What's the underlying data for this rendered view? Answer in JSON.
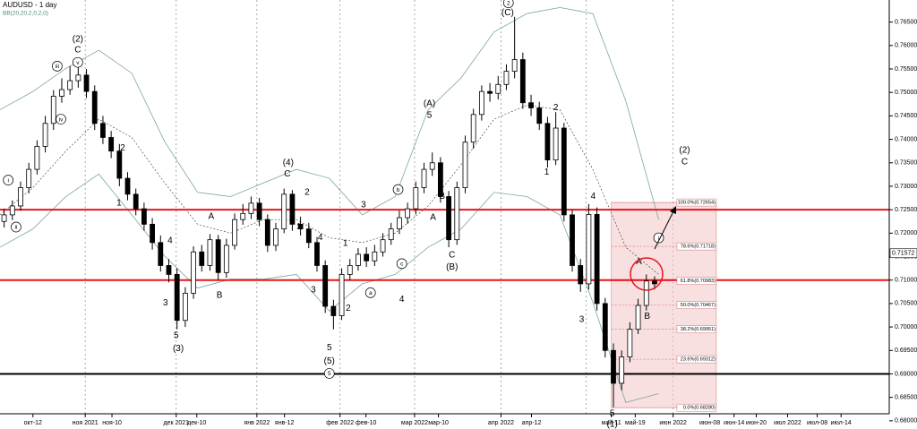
{
  "chart_data": {
    "type": "candlestick",
    "title": "AUDUSD - 1 day",
    "subtitle": "BB(20,20,2,0,2,0)",
    "x": [
      1,
      3,
      5,
      7,
      9,
      11,
      13,
      15,
      17,
      19,
      21,
      23,
      25,
      27,
      29,
      31,
      33,
      35,
      37,
      39,
      41,
      43,
      45,
      47,
      49,
      51,
      53,
      55,
      57,
      59,
      61,
      63,
      65,
      67,
      69,
      71,
      73,
      75,
      77,
      79,
      81,
      83,
      85,
      87,
      89,
      91,
      93,
      95,
      97,
      99,
      101,
      103,
      105,
      107,
      109,
      111,
      113,
      115,
      117,
      119,
      121,
      123,
      125,
      127,
      129,
      131,
      133,
      135,
      137,
      139,
      141,
      143,
      145,
      147,
      149,
      151,
      153,
      155,
      157,
      159
    ],
    "open": [
      0.7225,
      0.7239,
      0.7258,
      0.7297,
      0.7336,
      0.7385,
      0.7434,
      0.7492,
      0.7506,
      0.7525,
      0.7537,
      0.7502,
      0.7434,
      0.7404,
      0.7375,
      0.7317,
      0.7283,
      0.7252,
      0.7219,
      0.718,
      0.7131,
      0.7112,
      0.7014,
      0.7072,
      0.716,
      0.7131,
      0.7186,
      0.7116,
      0.7174,
      0.7229,
      0.7242,
      0.7264,
      0.7229,
      0.7174,
      0.7209,
      0.7283,
      0.7219,
      0.7209,
      0.718,
      0.7131,
      0.7044,
      0.7024,
      0.7112,
      0.7131,
      0.7155,
      0.7141,
      0.716,
      0.7186,
      0.7209,
      0.7233,
      0.7252,
      0.7297,
      0.7336,
      0.735,
      0.7278,
      0.7186,
      0.7297,
      0.7394,
      0.7453,
      0.7502,
      0.7498,
      0.7517,
      0.7545,
      0.757,
      0.7478,
      0.7467,
      0.7434,
      0.7356,
      0.7424,
      0.7239,
      0.7131,
      0.7092,
      0.724,
      0.705,
      0.695,
      0.688,
      0.6936,
      0.6995,
      0.7046,
      0.7098
    ],
    "high": [
      0.7252,
      0.727,
      0.731,
      0.735,
      0.7398,
      0.745,
      0.7505,
      0.753,
      0.7556,
      0.7555,
      0.755,
      0.7515,
      0.745,
      0.7418,
      0.739,
      0.733,
      0.7295,
      0.7265,
      0.7232,
      0.7195,
      0.7145,
      0.7125,
      0.7085,
      0.7172,
      0.7175,
      0.7198,
      0.7196,
      0.7188,
      0.7242,
      0.7262,
      0.7278,
      0.7275,
      0.724,
      0.7222,
      0.7295,
      0.7292,
      0.7235,
      0.7222,
      0.7192,
      0.7142,
      0.7058,
      0.7125,
      0.7145,
      0.7168,
      0.717,
      0.7175,
      0.72,
      0.7222,
      0.7248,
      0.7265,
      0.731,
      0.735,
      0.7372,
      0.7362,
      0.729,
      0.731,
      0.7408,
      0.7465,
      0.7515,
      0.752,
      0.7535,
      0.756,
      0.7661,
      0.7585,
      0.7495,
      0.748,
      0.7448,
      0.7458,
      0.7435,
      0.725,
      0.7145,
      0.7262,
      0.7255,
      0.7062,
      0.6965,
      0.695,
      0.701,
      0.706,
      0.7112,
      0.7108
    ],
    "low": [
      0.7212,
      0.7228,
      0.7248,
      0.7285,
      0.7325,
      0.7372,
      0.742,
      0.7478,
      0.7495,
      0.751,
      0.7488,
      0.742,
      0.739,
      0.736,
      0.73,
      0.727,
      0.7238,
      0.7205,
      0.7165,
      0.7118,
      0.7095,
      0.6995,
      0.7,
      0.706,
      0.7118,
      0.712,
      0.71,
      0.7105,
      0.7165,
      0.7218,
      0.723,
      0.7215,
      0.716,
      0.7162,
      0.72,
      0.7205,
      0.7195,
      0.7168,
      0.7118,
      0.703,
      0.6995,
      0.7015,
      0.71,
      0.712,
      0.7128,
      0.713,
      0.715,
      0.7175,
      0.7198,
      0.722,
      0.724,
      0.7285,
      0.7322,
      0.7265,
      0.717,
      0.7175,
      0.7285,
      0.738,
      0.744,
      0.748,
      0.7485,
      0.7505,
      0.753,
      0.7465,
      0.745,
      0.742,
      0.734,
      0.7345,
      0.7225,
      0.7118,
      0.7075,
      0.708,
      0.7035,
      0.6935,
      0.6829,
      0.6865,
      0.6925,
      0.6985,
      0.7035,
      0.708
    ],
    "close": [
      0.7239,
      0.7258,
      0.7297,
      0.7336,
      0.7385,
      0.7434,
      0.7492,
      0.7506,
      0.7525,
      0.7537,
      0.7502,
      0.7434,
      0.7404,
      0.7375,
      0.7317,
      0.7283,
      0.7252,
      0.7219,
      0.718,
      0.7131,
      0.7112,
      0.7014,
      0.7072,
      0.716,
      0.7131,
      0.7186,
      0.7116,
      0.7174,
      0.7229,
      0.7242,
      0.7264,
      0.7229,
      0.7174,
      0.7209,
      0.7283,
      0.7219,
      0.7209,
      0.718,
      0.7131,
      0.7044,
      0.7024,
      0.7112,
      0.7131,
      0.7155,
      0.7141,
      0.716,
      0.7186,
      0.7209,
      0.7233,
      0.7252,
      0.7297,
      0.7336,
      0.735,
      0.7278,
      0.7186,
      0.7297,
      0.7394,
      0.7453,
      0.7502,
      0.7498,
      0.7517,
      0.7545,
      0.757,
      0.7478,
      0.7467,
      0.7434,
      0.7356,
      0.7424,
      0.7239,
      0.7131,
      0.7092,
      0.724,
      0.705,
      0.695,
      0.688,
      0.6936,
      0.6995,
      0.7046,
      0.7098,
      0.7092
    ],
    "bands": {
      "x": [
        0,
        8,
        16,
        24,
        32,
        40,
        48,
        56,
        64,
        72,
        80,
        88,
        96,
        104,
        112,
        120,
        128,
        136,
        144,
        152,
        160
      ],
      "upper": [
        0.7463,
        0.7502,
        0.7551,
        0.759,
        0.7541,
        0.7395,
        0.7287,
        0.7278,
        0.7307,
        0.7336,
        0.7317,
        0.7239,
        0.7278,
        0.7463,
        0.7531,
        0.7629,
        0.7668,
        0.7681,
        0.7668,
        0.7482,
        0.7229
      ],
      "middle": [
        0.7239,
        0.7297,
        0.7375,
        0.7443,
        0.7404,
        0.7307,
        0.7219,
        0.72,
        0.7229,
        0.7229,
        0.719,
        0.718,
        0.72,
        0.7258,
        0.7346,
        0.7443,
        0.7473,
        0.7463,
        0.7336,
        0.717,
        0.7112
      ],
      "lower": [
        0.717,
        0.7209,
        0.7278,
        0.7326,
        0.7239,
        0.7151,
        0.7083,
        0.7102,
        0.7102,
        0.7112,
        0.7034,
        0.7092,
        0.7112,
        0.717,
        0.7209,
        0.7287,
        0.7278,
        0.7239,
        0.7053,
        0.6839,
        0.6858
      ],
      "color": "#7aa6a0"
    },
    "xlim": [
      0,
      216
    ],
    "ylim": [
      0.6815,
      0.7697
    ],
    "yticks": [
      {
        "value": 0.765,
        "label": "0.76500"
      },
      {
        "value": 0.76,
        "label": "0.76000"
      },
      {
        "value": 0.755,
        "label": "0.75500"
      },
      {
        "value": 0.75,
        "label": "0.75000"
      },
      {
        "value": 0.745,
        "label": "0.74500"
      },
      {
        "value": 0.74,
        "label": "0.74000"
      },
      {
        "value": 0.735,
        "label": "0.73500"
      },
      {
        "value": 0.73,
        "label": "0.73000"
      },
      {
        "value": 0.725,
        "label": "0.72500"
      },
      {
        "value": 0.72,
        "label": "0.72000"
      },
      {
        "value": 0.715,
        "label": "0.71500"
      },
      {
        "value": 0.71,
        "label": "0.71000"
      },
      {
        "value": 0.705,
        "label": "0.70500"
      },
      {
        "value": 0.7,
        "label": "0.70000"
      },
      {
        "value": 0.695,
        "label": "0.69500"
      },
      {
        "value": 0.69,
        "label": "0.69000"
      },
      {
        "value": 0.685,
        "label": "0.68500"
      },
      {
        "value": 0.68,
        "label": "0.68000"
      }
    ],
    "xticks": [
      {
        "value": 8,
        "label": "окт-12"
      },
      {
        "value": 20.7,
        "label": "ноя 2021"
      },
      {
        "value": 27.2,
        "label": "ноя-10"
      },
      {
        "value": 42.8,
        "label": "дек 2021"
      },
      {
        "value": 47.8,
        "label": "дек-10"
      },
      {
        "value": 62.4,
        "label": "янв 2022"
      },
      {
        "value": 69.1,
        "label": "янв-12"
      },
      {
        "value": 82.6,
        "label": "фев 2022"
      },
      {
        "value": 88.9,
        "label": "фев-10"
      },
      {
        "value": 100.7,
        "label": "мар 2022"
      },
      {
        "value": 106.5,
        "label": "мар-10"
      },
      {
        "value": 121.7,
        "label": "апр 2022"
      },
      {
        "value": 129.1,
        "label": "апр-12"
      },
      {
        "value": 148.5,
        "label": "май-11"
      },
      {
        "value": 154.3,
        "label": "май-19"
      },
      {
        "value": 163.5,
        "label": "июн 2022"
      },
      {
        "value": 172.4,
        "label": "июн-08"
      },
      {
        "value": 178.3,
        "label": "июн-14"
      },
      {
        "value": 183.7,
        "label": "июн-20"
      },
      {
        "value": 191.3,
        "label": "июл 2022"
      },
      {
        "value": 198.5,
        "label": "июл-08"
      },
      {
        "value": 204.3,
        "label": "июл-14"
      }
    ],
    "xgrid": [
      20.7,
      42.8,
      62.4,
      82.6,
      100.7,
      121.7,
      142.4,
      163.5
    ],
    "hlines": [
      {
        "value": 0.725,
        "color": "#e8141b"
      },
      {
        "value": 0.71,
        "color": "#e8141b"
      },
      {
        "value": 0.69,
        "color": "#000000"
      }
    ],
    "last_price": {
      "value": 0.71572,
      "label": "0.71572"
    },
    "fib": {
      "x_range": [
        148.5,
        174
      ],
      "color": "#f2c4c6",
      "levels": [
        {
          "value": 0.72654,
          "label": "100.0%(0.72654)"
        },
        {
          "value": 0.71718,
          "label": "78.6%(0.71718)"
        },
        {
          "value": 0.70983,
          "label": "61.8%(0.70983)"
        },
        {
          "value": 0.70467,
          "label": "50.0%(0.70467)"
        },
        {
          "value": 0.69951,
          "label": "38.2%(0.69951)"
        },
        {
          "value": 0.69312,
          "label": "23.6%(0.69312)"
        },
        {
          "value": 0.6828,
          "label": "0.0%(0.68280)"
        }
      ]
    },
    "annotations": [
      {
        "text": "(2)",
        "x": 18.9,
        "y": 0.7613
      },
      {
        "text": "C",
        "x": 18.9,
        "y": 0.759
      },
      {
        "text": "iii",
        "x": 13.9,
        "y": 0.7556,
        "circled": true
      },
      {
        "text": "v",
        "x": 18.9,
        "y": 0.7564,
        "circled": true
      },
      {
        "text": "iv",
        "x": 14.8,
        "y": 0.7443,
        "circled": true
      },
      {
        "text": "i",
        "x": 2,
        "y": 0.7313,
        "circled": true
      },
      {
        "text": "ii",
        "x": 3.9,
        "y": 0.7213,
        "circled": true
      },
      {
        "text": "2",
        "x": 29.8,
        "y": 0.7381
      },
      {
        "text": "1",
        "x": 28.9,
        "y": 0.7264
      },
      {
        "text": "4",
        "x": 41.3,
        "y": 0.7184
      },
      {
        "text": "3",
        "x": 40.2,
        "y": 0.7051
      },
      {
        "text": "5",
        "x": 42.8,
        "y": 0.6981
      },
      {
        "text": "(3)",
        "x": 43.3,
        "y": 0.6954
      },
      {
        "text": "A",
        "x": 51.3,
        "y": 0.7235
      },
      {
        "text": "B",
        "x": 53.3,
        "y": 0.7067
      },
      {
        "text": "(4)",
        "x": 70,
        "y": 0.735
      },
      {
        "text": "C",
        "x": 69.8,
        "y": 0.7326
      },
      {
        "text": "2",
        "x": 74.6,
        "y": 0.7287
      },
      {
        "text": "1",
        "x": 72.6,
        "y": 0.7213
      },
      {
        "text": "3",
        "x": 88.3,
        "y": 0.726
      },
      {
        "text": "1",
        "x": 83.9,
        "y": 0.7178
      },
      {
        "text": "4",
        "x": 77.8,
        "y": 0.719
      },
      {
        "text": "3",
        "x": 76.1,
        "y": 0.7079
      },
      {
        "text": "2",
        "x": 84.6,
        "y": 0.704
      },
      {
        "text": "5",
        "x": 80,
        "y": 0.6956
      },
      {
        "text": "(5)",
        "x": 80,
        "y": 0.6927
      },
      {
        "text": "5",
        "x": 80,
        "y": 0.6901,
        "circled": true
      },
      {
        "text": "b",
        "x": 96.7,
        "y": 0.7293,
        "circled": true
      },
      {
        "text": "a",
        "x": 90,
        "y": 0.7073,
        "circled": true
      },
      {
        "text": "c",
        "x": 97.6,
        "y": 0.7135,
        "circled": true
      },
      {
        "text": "4",
        "x": 97.6,
        "y": 0.7059
      },
      {
        "text": "(A)",
        "x": 104.3,
        "y": 0.7476
      },
      {
        "text": "5",
        "x": 104.3,
        "y": 0.7451
      },
      {
        "text": "A",
        "x": 105.2,
        "y": 0.7233
      },
      {
        "text": "B",
        "x": 107.4,
        "y": 0.7278
      },
      {
        "text": "C",
        "x": 109.8,
        "y": 0.7153
      },
      {
        "text": "(B)",
        "x": 109.8,
        "y": 0.7127
      },
      {
        "text": "2",
        "x": 123.5,
        "y": 0.7691,
        "circled": true
      },
      {
        "text": "(C)",
        "x": 123.3,
        "y": 0.767
      },
      {
        "text": "2",
        "x": 135,
        "y": 0.7467
      },
      {
        "text": "1",
        "x": 132.8,
        "y": 0.733
      },
      {
        "text": "4",
        "x": 144.1,
        "y": 0.7278
      },
      {
        "text": "3",
        "x": 141.3,
        "y": 0.7016
      },
      {
        "text": "5",
        "x": 148.7,
        "y": 0.6815
      },
      {
        "text": "(1)",
        "x": 148.7,
        "y": 0.6792
      },
      {
        "text": "A",
        "x": 155.2,
        "y": 0.7139
      },
      {
        "text": "B",
        "x": 157.2,
        "y": 0.7022
      },
      {
        "text": "i",
        "x": 160,
        "y": 0.719,
        "circled": true
      },
      {
        "text": "(2)",
        "x": 166.3,
        "y": 0.7377
      },
      {
        "text": "C",
        "x": 166.3,
        "y": 0.7352
      }
    ]
  }
}
